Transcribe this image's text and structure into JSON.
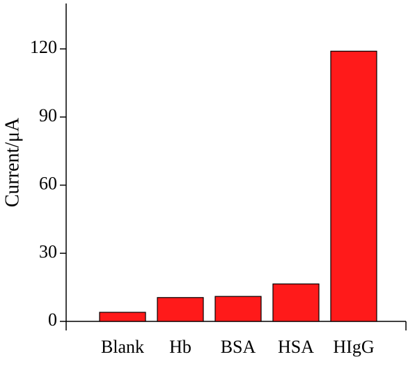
{
  "chart_data": {
    "type": "bar",
    "y_label": "Current/μA",
    "categories": [
      "Blank",
      "Hb",
      "BSA",
      "HSA",
      "HIgG"
    ],
    "values": [
      4,
      10.5,
      11,
      16.5,
      119
    ],
    "color": "#ff1a1a",
    "ylim": [
      0,
      140
    ],
    "yticks": [
      0,
      30,
      60,
      90,
      120
    ]
  }
}
